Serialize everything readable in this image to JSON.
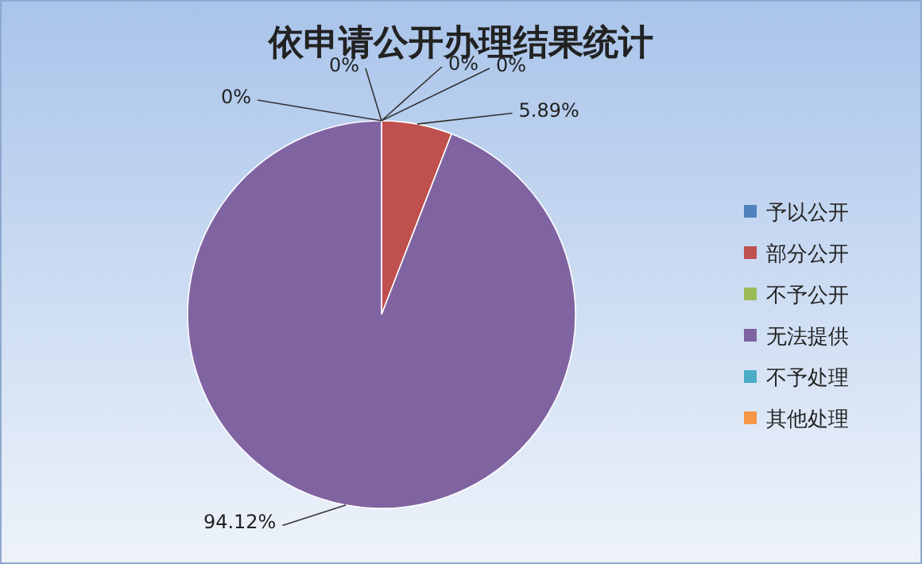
{
  "chart_data": {
    "type": "pie",
    "title": "依申请公开办理结果统计",
    "categories": [
      "予以公开",
      "部分公开",
      "不予公开",
      "无法提供",
      "不予处理",
      "其他处理"
    ],
    "values": [
      0,
      5.89,
      0,
      94.12,
      0,
      0
    ],
    "value_labels": [
      "0%",
      "5.89%",
      "0%",
      "94.12%",
      "0%",
      "0%"
    ],
    "colors": [
      "#4f81bd",
      "#c0504d",
      "#9bbb59",
      "#8064a2",
      "#4bacc6",
      "#f79646"
    ],
    "legend": "right"
  }
}
